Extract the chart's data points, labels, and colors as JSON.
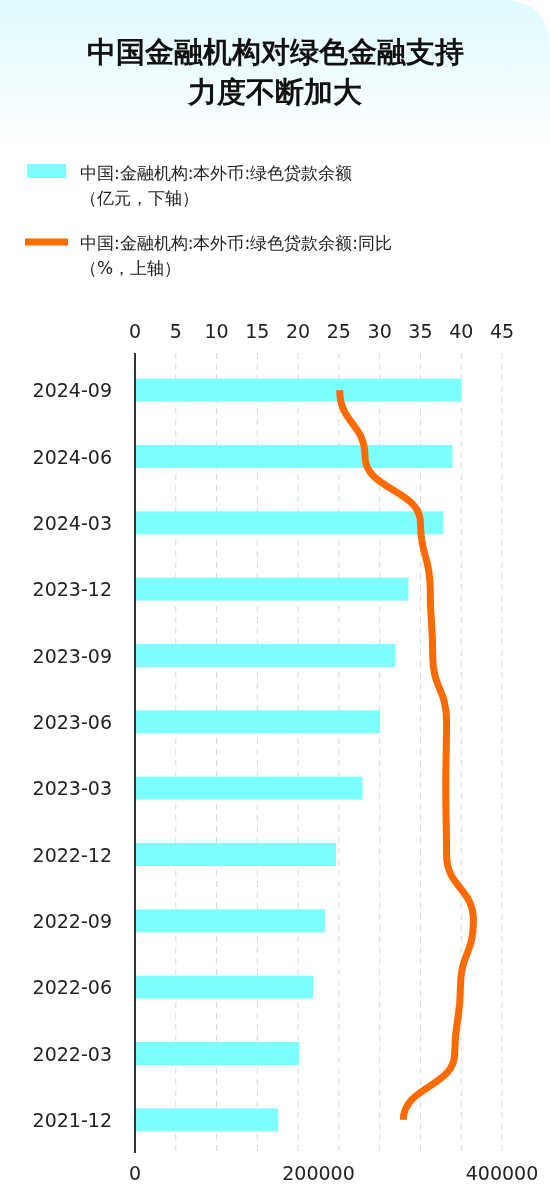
{
  "chart_data": {
    "type": "bar",
    "orientation": "horizontal",
    "title": "中国金融机构对绿色金融支持力度不断加大",
    "categories": [
      "2024-09",
      "2024-06",
      "2024-03",
      "2023-12",
      "2023-09",
      "2023-06",
      "2023-03",
      "2022-12",
      "2022-09",
      "2022-06",
      "2022-03",
      "2021-12"
    ],
    "series": [
      {
        "name": "中国:金融机构:本外币:绿色贷款余额（亿元，下轴）",
        "color": "#7effff",
        "values": [
          356000,
          346000,
          336000,
          298000,
          284000,
          267000,
          248000,
          219000,
          207000,
          194000,
          179000,
          156000
        ]
      },
      {
        "name": "中国:金融机构:本外币:绿色贷款余额:同比（%，上轴）",
        "type": "line",
        "axis": "x2",
        "color": "#ff6a00",
        "values": [
          25.1,
          28.2,
          35.0,
          36.2,
          36.5,
          38.2,
          38.1,
          38.2,
          41.5,
          39.9,
          39.2,
          32.9
        ]
      }
    ],
    "xlim": [
      0,
      400000
    ],
    "xticks": [
      0,
      200000,
      400000
    ],
    "x2lim": [
      0,
      45
    ],
    "x2ticks": [
      0,
      5,
      10,
      15,
      20,
      25,
      30,
      35,
      40,
      45
    ],
    "grid": "x2",
    "legend": "top",
    "line_style": "solid",
    "marker": "none"
  }
}
